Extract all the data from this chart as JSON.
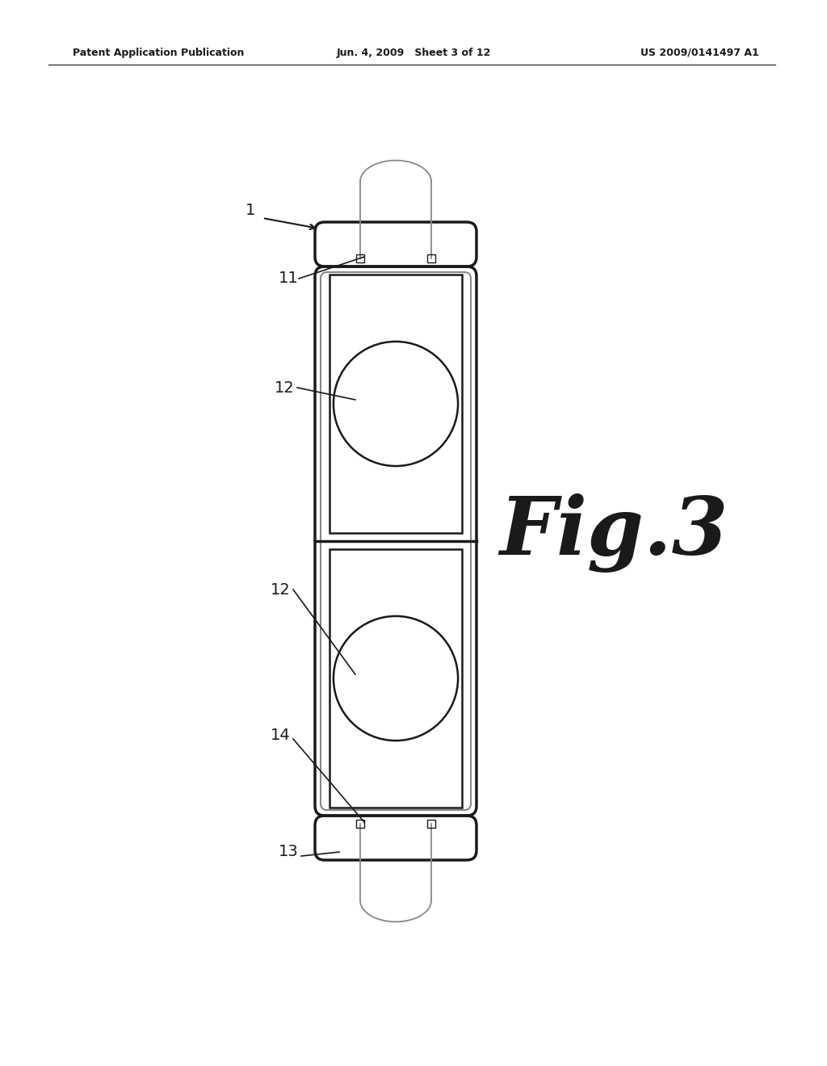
{
  "bg_color": "#ffffff",
  "line_color": "#1a1a1a",
  "light_line_color": "#888888",
  "header_left": "Patent Application Publication",
  "header_center": "Jun. 4, 2009   Sheet 3 of 12",
  "header_right": "US 2009/0141497 A1",
  "fig_label": "Fig.3",
  "page_width": 10.24,
  "page_height": 13.2,
  "dpi": 100
}
